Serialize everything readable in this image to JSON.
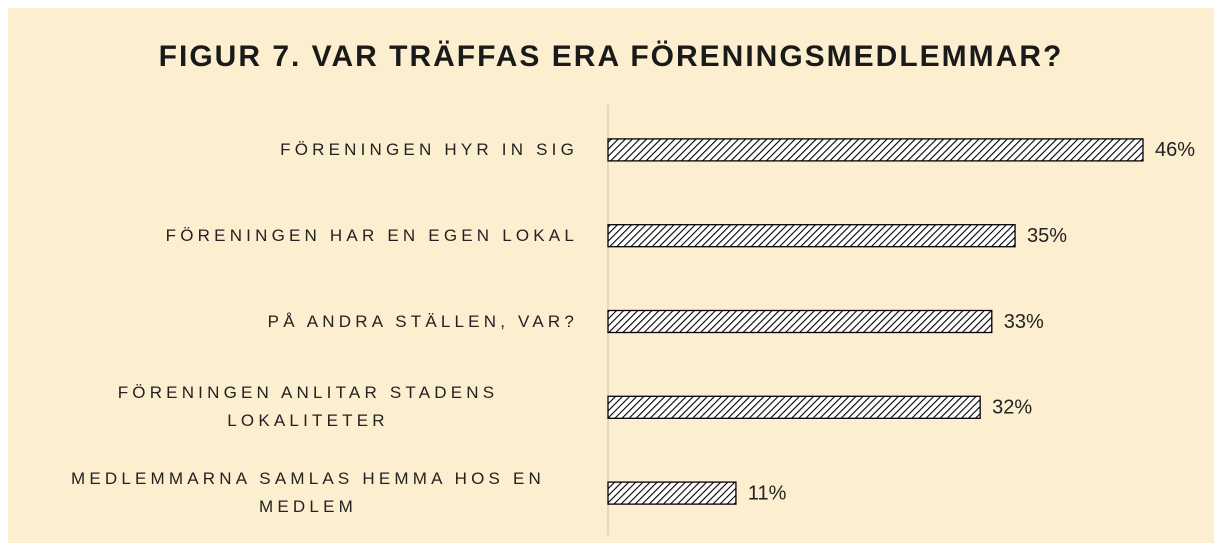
{
  "chart_data": {
    "type": "barh",
    "title": "FIGUR 7. VAR TRÄFFAS ERA FÖRENINGSMEDLEMMAR?",
    "categories": [
      "FÖRENINGEN HYR IN SIG",
      "FÖRENINGEN HAR EN EGEN LOKAL",
      "PÅ ANDRA STÄLLEN, VAR?",
      "FÖRENINGEN ANLITAR STADENS LOKALITETER",
      "MEDLEMMARNA SAMLAS HEMMA HOS EN MEDLEM"
    ],
    "values": [
      46,
      35,
      33,
      32,
      11
    ],
    "value_labels": [
      "46%",
      "35%",
      "33%",
      "32%",
      "11%"
    ],
    "color": "#000000",
    "xlim": [
      0,
      50
    ]
  }
}
